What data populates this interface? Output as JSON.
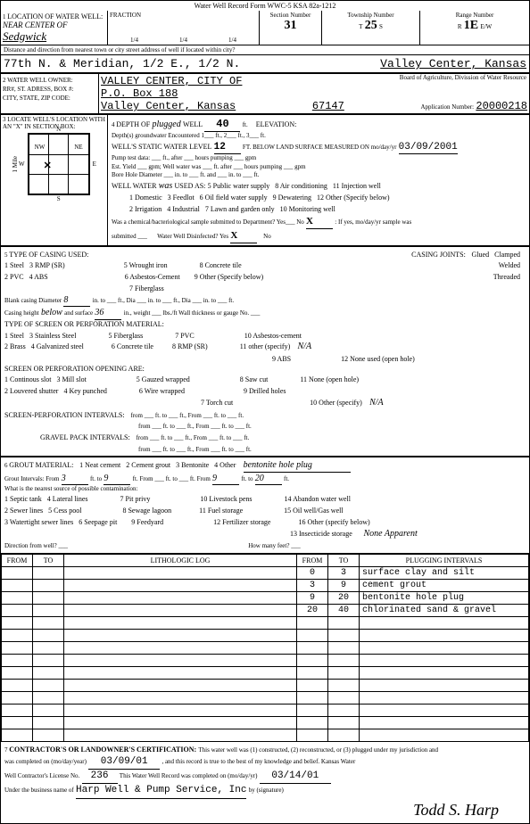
{
  "header": {
    "form_title": "Water Well Record   Form WWC-5   KSA 82a-1212"
  },
  "sec1": {
    "label": "LOCATION OF WATER WELL:",
    "county": "Sedgwick",
    "fraction_note": "NEAR CENTER OF",
    "fraction_label": "FRACTION",
    "q1": "1/4",
    "q2": "1/4",
    "q3": "1/4",
    "section_label": "Section Number",
    "section": "31",
    "township_label": "Township Number",
    "township_t": "T",
    "township": "25",
    "township_s": "S",
    "range_label": "Range Number",
    "range_r": "R",
    "range": "1E",
    "range_ew": "E/W",
    "distance_label": "Distance and direction from nearest town or city street address of well if located within city?",
    "distance": "77th N. & Meridian, 1/2 E., 1/2 N.",
    "city_state": "Valley Center, Kansas"
  },
  "sec2": {
    "owner_label": "WATER WELL OWNER:",
    "owner": "VALLEY CENTER, CITY OF",
    "addr_label": "RR#, ST. ADRESS, BOX #:",
    "addr": "P.O. Box 188",
    "csz_label": "CITY, STATE, ZIP CODE:",
    "csz": "Valley Center, Kansas",
    "zip": "67147",
    "board": "Board of Agriculture, Divission of Water Resource",
    "app_label": "Application Number:",
    "app": "20000218"
  },
  "sec3": {
    "locate_label": "LOCATE WELL'S LOCATION WITH AN \"X\" IN SECTION BOX:",
    "n": "N",
    "s": "S",
    "e": "E",
    "w": "W",
    "nw": "NW",
    "ne": "NE",
    "mile": "1 Mile"
  },
  "sec4": {
    "depth_label": "DEPTH OF",
    "depth_hand": "plugged",
    "depth_suffix": "WELL",
    "depth_ft": "40",
    "depth_unit": "ft.",
    "elev_label": "ELEVATION:",
    "depths_enc": "Depth(s) groundwater Encountered   1___ ft.,   2___ ft.,   3___ ft.",
    "static_label": "WELL'S STATIC WATER LEVEL",
    "static": "12",
    "static_unit": "FT. BELOW LAND SURFACE MEASURED ON mo/day/yr",
    "static_date": "03/09/2001",
    "pump_test": "Pump test data: ___ ft., after ___ hours pumping ___ gpm",
    "est_yield": "Est. Yield ___ gpm;   Well water was ___ ft.   after ___ hours pumping ___ gpm",
    "bore_hole": "Bore Hole Diameter ___ in. to ___ ft.   and ___ in. to ___ ft.",
    "was_hand": "was",
    "used_as_label": "WELL WATER",
    "used_as_suffix": "USED AS:",
    "opts1": [
      "1 Domestic",
      "2 Irrigation",
      "3 Feedlot",
      "4 Industrial",
      "5 Public water supply",
      "6 Oil field water supply",
      "7 Lawn and garden only",
      "8 Air conditioning",
      "9 Dewatering",
      "10 Monitoring well",
      "11 Injection well",
      "12 Other (Specify below)"
    ],
    "chem": "Was a chemical/bacteriological sample submitted to Department?  Yes___  No",
    "chem_x": "X",
    "chem2": ": If yes, mo/day/yr sample was",
    "sub": "submitted ___",
    "disinf": "Water Well Disinfected?   Yes",
    "disinf_x": "X",
    "disinf_no": "No"
  },
  "sec5": {
    "title": "TYPE OF CASING USED:",
    "r1": [
      "1 Steel",
      "3 RMP (SR)",
      "5 Wrought iron",
      "6 Asbestos-Cement",
      "8 Concrete tile",
      "9 Other (Specify below)"
    ],
    "r2": [
      "2 PVC",
      "4 ABS",
      "7 Fiberglass"
    ],
    "joints_label": "CASING JOINTS:",
    "joints": [
      "Glued",
      "Clamped",
      "Welded",
      "Threaded"
    ],
    "blank_casing": "Blank casing Diameter",
    "blank_d": "8",
    "below_hand": "below",
    "casing_height": "Casing height",
    "surface_label": "and surface",
    "surface": "36",
    "dia_line": "in.  to ___ ft.,   Dia ___ in.  to ___ ft.,   Dia ___ in.  to ___ ft.",
    "weight_line": "in.,   weight ___ lbs./ft   Wall thickness or gauge No. ___",
    "screen_title": "TYPE OF SCREEN OR PERFORATION MATERIAL:",
    "screen_opts": [
      "1 Steel",
      "2 Brass",
      "3 Stainless Steel",
      "4 Galvanized steel",
      "5 Fiberglass",
      "6 Concrete tile",
      "7 PVC",
      "8 RMP (SR)",
      "9 ABS",
      "10 Asbestos-cement",
      "11 other (specify)",
      "12 None used (open hole)"
    ],
    "screen_na": "N/A",
    "open_title": "SCREEN OR PERFORATION OPENING ARE:",
    "open_opts": [
      "1 Continous slot",
      "2 Louvered shutter",
      "3 Mill slot",
      "4 Key punched",
      "5 Gauzed wrapped",
      "6 Wire wrapped",
      "7 Torch cut",
      "8 Saw cut",
      "9 Drilled holes",
      "10 Other (specify)",
      "11 None (open hole)"
    ],
    "open_na": "N/A",
    "intervals1": "SCREEN-PERFORATION INTERVALS:",
    "intervals2": "GRAVEL PACK INTERVALS:",
    "from_to": "from ___ ft. to ___ ft., From ___ ft. to ___ ft."
  },
  "sec6": {
    "title": "GROUT MATERIAL:",
    "opts": [
      "1 Neat cement",
      "2 Cement grout",
      "3 Bentonite",
      "4 Other"
    ],
    "other_hand": "bentonite hole plug",
    "grout_int": "Grout Intervals: From",
    "gi_from1": "3",
    "gi_to1": "9",
    "gi_from2": "9",
    "gi_to2": "20",
    "source_q": "What is the nearest source of possible contamination:",
    "src_opts": [
      "1 Septic tank",
      "2 Sewer lines",
      "3 Watertight sewer lines",
      "4 Lateral lines",
      "5 Cess pool",
      "6 Seepage pit",
      "7 Pit privy",
      "8 Sewage lagoon",
      "9 Feedyard",
      "10 Livestock pens",
      "11 Fuel storage",
      "12 Fertilizer storage",
      "13 Insecticide storage",
      "14 Abandon water well",
      "15 Oil well/Gas well",
      "16 Other (specify below)"
    ],
    "none_app": "None Apparent",
    "dir_label": "Direction from well? ___",
    "how_many": "How many feet? ___",
    "log_headers": [
      "FROM",
      "TO",
      "LITHOLOGIC LOG",
      "FROM",
      "TO",
      "PLUGGING INTERVALS"
    ],
    "log_rows": [
      [
        "",
        "",
        "",
        "0",
        "3",
        "surface clay and silt"
      ],
      [
        "",
        "",
        "",
        "3",
        "9",
        "cement grout"
      ],
      [
        "",
        "",
        "",
        "9",
        "20",
        "bentonite hole plug"
      ],
      [
        "",
        "",
        "",
        "20",
        "40",
        "chlorinated sand & gravel"
      ],
      [
        "",
        "",
        "",
        "",
        "",
        ""
      ],
      [
        "",
        "",
        "",
        "",
        "",
        ""
      ],
      [
        "",
        "",
        "",
        "",
        "",
        ""
      ],
      [
        "",
        "",
        "",
        "",
        "",
        ""
      ],
      [
        "",
        "",
        "",
        "",
        "",
        ""
      ],
      [
        "",
        "",
        "",
        "",
        "",
        ""
      ],
      [
        "",
        "",
        "",
        "",
        "",
        ""
      ],
      [
        "",
        "",
        "",
        "",
        "",
        ""
      ],
      [
        "",
        "",
        "",
        "",
        "",
        ""
      ],
      [
        "",
        "",
        "",
        "",
        "",
        ""
      ]
    ]
  },
  "sec7": {
    "cert_label": "CONTRACTOR'S OR LANDOWNER'S CERTIFICATION:",
    "cert_text1": "This water well was (1) constructed, (2) reconstructed, or (3) plugged under my jurisdiction and",
    "cert_text2": "was completed on (mo/day/year)",
    "date1": "03/09/01",
    "cert_text3": ", and this record is true to the best of my knowledge and belief. Kansas Water",
    "cert_text4": "Well Contractor's License No.",
    "lic": "236",
    "cert_text5": "This Water Well Record was completed on (mo/day/yr)",
    "date2": "03/14/01",
    "cert_text6": "Under the business name of",
    "biz": "Harp Well & Pump Service, Inc",
    "cert_text7": "by (signature)",
    "sig": "Todd S. Harp"
  }
}
